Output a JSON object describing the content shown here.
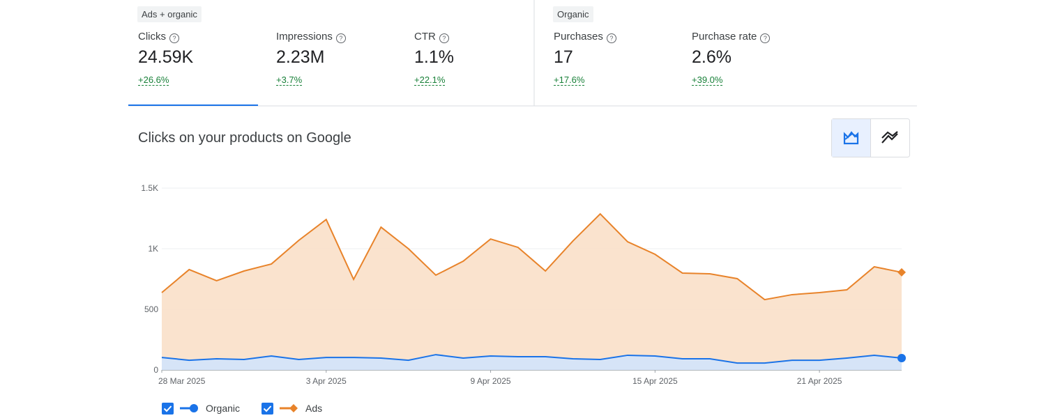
{
  "header": {
    "groups": [
      {
        "label": "Ads + organic",
        "metrics": [
          {
            "name": "Clicks",
            "value": "24.59K",
            "change": "+26.6%"
          },
          {
            "name": "Impressions",
            "value": "2.23M",
            "change": "+3.7%"
          },
          {
            "name": "CTR",
            "value": "1.1%",
            "change": "+22.1%"
          }
        ]
      },
      {
        "label": "Organic",
        "metrics": [
          {
            "name": "Purchases",
            "value": "17",
            "change": "+17.6%"
          },
          {
            "name": "Purchase rate",
            "value": "2.6%",
            "change": "+39.0%"
          }
        ]
      }
    ]
  },
  "chart_data": {
    "type": "area",
    "title": "Clicks on your products on Google",
    "x": [
      "2025-03-28",
      "2025-03-29",
      "2025-03-30",
      "2025-03-31",
      "2025-04-01",
      "2025-04-02",
      "2025-04-03",
      "2025-04-04",
      "2025-04-05",
      "2025-04-06",
      "2025-04-07",
      "2025-04-08",
      "2025-04-09",
      "2025-04-10",
      "2025-04-11",
      "2025-04-12",
      "2025-04-13",
      "2025-04-14",
      "2025-04-15",
      "2025-04-16",
      "2025-04-17",
      "2025-04-18",
      "2025-04-19",
      "2025-04-20",
      "2025-04-21",
      "2025-04-22",
      "2025-04-23",
      "2025-04-24"
    ],
    "series": [
      {
        "name": "Organic",
        "color": "#1a73e8",
        "fill": "#d2e3fc",
        "values": [
          103,
          80,
          92,
          86,
          115,
          86,
          103,
          103,
          98,
          80,
          126,
          98,
          115,
          109,
          109,
          92,
          86,
          121,
          115,
          92,
          92,
          57,
          57,
          80,
          80,
          98,
          121,
          98
        ]
      },
      {
        "name": "Ads",
        "color": "#e8832a",
        "fill": "#f9e0c9",
        "values": [
          638,
          828,
          736,
          816,
          874,
          1069,
          1241,
          747,
          1178,
          1000,
          782,
          897,
          1080,
          1011,
          816,
          1063,
          1287,
          1057,
          954,
          799,
          793,
          753,
          580,
          621,
          638,
          661,
          851,
          805
        ]
      }
    ],
    "xlim": [
      "2025-03-28",
      "2025-04-24"
    ],
    "xticks": [
      {
        "value": "2025-03-28",
        "label": "28 Mar 2025"
      },
      {
        "value": "2025-04-03",
        "label": "3 Apr 2025"
      },
      {
        "value": "2025-04-09",
        "label": "9 Apr 2025"
      },
      {
        "value": "2025-04-15",
        "label": "15 Apr 2025"
      },
      {
        "value": "2025-04-21",
        "label": "21 Apr 2025"
      }
    ],
    "ylim": [
      0,
      1500
    ],
    "yticks": [
      0,
      500,
      {
        "value": 1000,
        "label": "1K"
      },
      {
        "value": 1500,
        "label": "1.5K"
      }
    ],
    "grid": true
  }
}
